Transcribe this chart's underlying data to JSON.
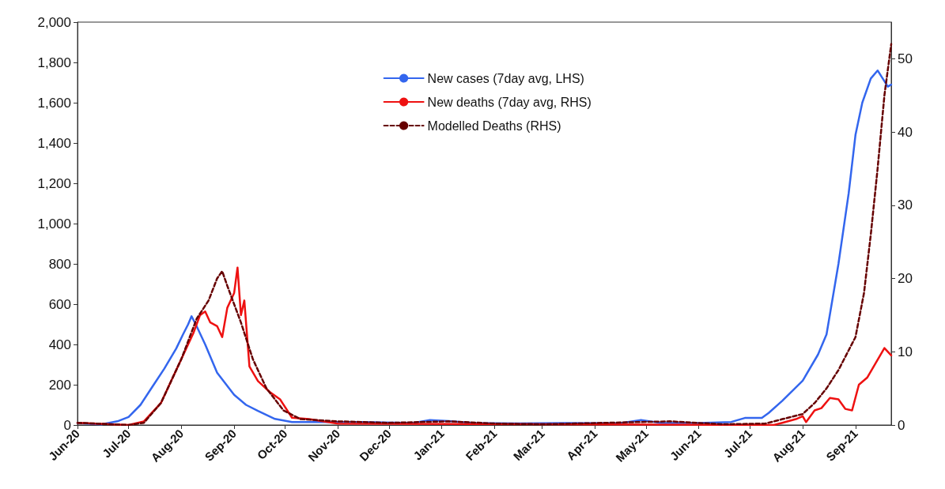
{
  "chart_data": {
    "type": "line",
    "xlim": [
      "2020-06-01",
      "2021-09-22"
    ],
    "xticks": [
      {
        "value": "2020-06-01",
        "label": "Jun-20"
      },
      {
        "value": "2020-07-01",
        "label": "Jul-20"
      },
      {
        "value": "2020-08-01",
        "label": "Aug-20"
      },
      {
        "value": "2020-09-01",
        "label": "Sep-20"
      },
      {
        "value": "2020-10-01",
        "label": "Oct-20"
      },
      {
        "value": "2020-11-01",
        "label": "Nov-20"
      },
      {
        "value": "2020-12-01",
        "label": "Dec-20"
      },
      {
        "value": "2021-01-01",
        "label": "Jan-21"
      },
      {
        "value": "2021-02-01",
        "label": "Feb-21"
      },
      {
        "value": "2021-03-01",
        "label": "Mar-21"
      },
      {
        "value": "2021-04-01",
        "label": "Apr-21"
      },
      {
        "value": "2021-05-01",
        "label": "May-21"
      },
      {
        "value": "2021-06-01",
        "label": "Jun-21"
      },
      {
        "value": "2021-07-01",
        "label": "Jul-21"
      },
      {
        "value": "2021-08-01",
        "label": "Aug-21"
      },
      {
        "value": "2021-09-01",
        "label": "Sep-21"
      }
    ],
    "ylim": [
      0,
      2000
    ],
    "yticks": [
      0,
      200,
      400,
      600,
      800,
      {
        "value": 1000,
        "label": "1,000"
      },
      {
        "value": 1200,
        "label": "1,200"
      },
      {
        "value": 1400,
        "label": "1,400"
      },
      {
        "value": 1600,
        "label": "1,600"
      },
      {
        "value": 1800,
        "label": "1,800"
      },
      {
        "value": 2000,
        "label": "2,000"
      }
    ],
    "y2lim": [
      0,
      55
    ],
    "y2ticks": [
      0,
      10,
      20,
      30,
      40,
      50
    ],
    "grid": false,
    "legend": "top",
    "marker": "none",
    "series": [
      {
        "name": "New cases (7day avg, LHS)",
        "color": "#3366ee",
        "line_style": "solid",
        "x": [
          "2020-06-01",
          "2020-06-15",
          "2020-06-25",
          "2020-07-01",
          "2020-07-08",
          "2020-07-15",
          "2020-07-22",
          "2020-07-29",
          "2020-08-02",
          "2020-08-05",
          "2020-08-07",
          "2020-08-10",
          "2020-08-15",
          "2020-08-22",
          "2020-09-01",
          "2020-09-08",
          "2020-09-15",
          "2020-09-25",
          "2020-10-05",
          "2020-10-20",
          "2020-11-15",
          "2020-12-15",
          "2020-12-25",
          "2021-01-05",
          "2021-01-20",
          "2021-02-15",
          "2021-03-15",
          "2021-04-15",
          "2021-04-28",
          "2021-05-10",
          "2021-06-01",
          "2021-06-20",
          "2021-06-28",
          "2021-07-08",
          "2021-07-12",
          "2021-07-20",
          "2021-08-01",
          "2021-08-10",
          "2021-08-15",
          "2021-08-22",
          "2021-08-28",
          "2021-09-01",
          "2021-09-05",
          "2021-09-10",
          "2021-09-14",
          "2021-09-17",
          "2021-09-20",
          "2021-09-22"
        ],
        "values": [
          10,
          3,
          20,
          40,
          100,
          190,
          280,
          380,
          450,
          500,
          540,
          490,
          400,
          260,
          150,
          100,
          70,
          30,
          15,
          15,
          15,
          10,
          25,
          20,
          10,
          8,
          10,
          8,
          25,
          10,
          10,
          15,
          35,
          35,
          60,
          120,
          220,
          350,
          450,
          800,
          1150,
          1440,
          1600,
          1720,
          1760,
          1720,
          1680,
          1690
        ]
      },
      {
        "name": "New deaths (7day avg, RHS)",
        "color": "#ee1111",
        "axis": "y2",
        "line_style": "solid",
        "x": [
          "2020-06-01",
          "2020-07-01",
          "2020-07-10",
          "2020-07-20",
          "2020-07-25",
          "2020-08-01",
          "2020-08-08",
          "2020-08-12",
          "2020-08-15",
          "2020-08-18",
          "2020-08-22",
          "2020-08-25",
          "2020-08-28",
          "2020-09-01",
          "2020-09-03",
          "2020-09-05",
          "2020-09-07",
          "2020-09-10",
          "2020-09-15",
          "2020-09-22",
          "2020-09-28",
          "2020-10-05",
          "2020-10-15",
          "2020-11-01",
          "2021-07-15",
          "2021-07-20",
          "2021-07-28",
          "2021-08-01",
          "2021-08-03",
          "2021-08-08",
          "2021-08-12",
          "2021-08-17",
          "2021-08-22",
          "2021-08-26",
          "2021-08-30",
          "2021-09-03",
          "2021-09-08",
          "2021-09-13",
          "2021-09-18",
          "2021-09-22"
        ],
        "values": [
          0.3,
          0,
          0.5,
          3,
          5.5,
          9,
          12.5,
          15,
          15.5,
          14,
          13.5,
          12,
          16,
          18,
          21.5,
          15,
          17,
          8,
          6,
          4.5,
          3.5,
          1,
          0.8,
          0.2,
          0,
          0.3,
          0.8,
          1.2,
          0.4,
          2,
          2.3,
          3.7,
          3.5,
          2.2,
          2,
          5.5,
          6.5,
          8.5,
          10.5,
          9.5
        ]
      },
      {
        "name": "Modelled Deaths (RHS)",
        "color": "#660000",
        "axis": "y2",
        "line_style": "dashed",
        "x": [
          "2020-06-01",
          "2020-07-01",
          "2020-07-10",
          "2020-07-20",
          "2020-08-01",
          "2020-08-10",
          "2020-08-17",
          "2020-08-22",
          "2020-08-25",
          "2020-08-28",
          "2020-09-05",
          "2020-09-12",
          "2020-09-20",
          "2020-09-30",
          "2020-10-10",
          "2020-11-01",
          "2020-12-01",
          "2021-01-05",
          "2021-02-01",
          "2021-03-01",
          "2021-05-15",
          "2021-06-15",
          "2021-07-10",
          "2021-07-20",
          "2021-08-01",
          "2021-08-08",
          "2021-08-15",
          "2021-08-22",
          "2021-09-01",
          "2021-09-06",
          "2021-09-10",
          "2021-09-14",
          "2021-09-18",
          "2021-09-22"
        ],
        "values": [
          0.3,
          0,
          0.3,
          3,
          9,
          14.5,
          17,
          20,
          21,
          19,
          14,
          9,
          5,
          2,
          0.8,
          0.5,
          0.3,
          0.5,
          0.2,
          0.1,
          0.5,
          0.1,
          0.2,
          0.8,
          1.5,
          3,
          5,
          7.5,
          12,
          18,
          26,
          35,
          45,
          52
        ]
      }
    ]
  }
}
